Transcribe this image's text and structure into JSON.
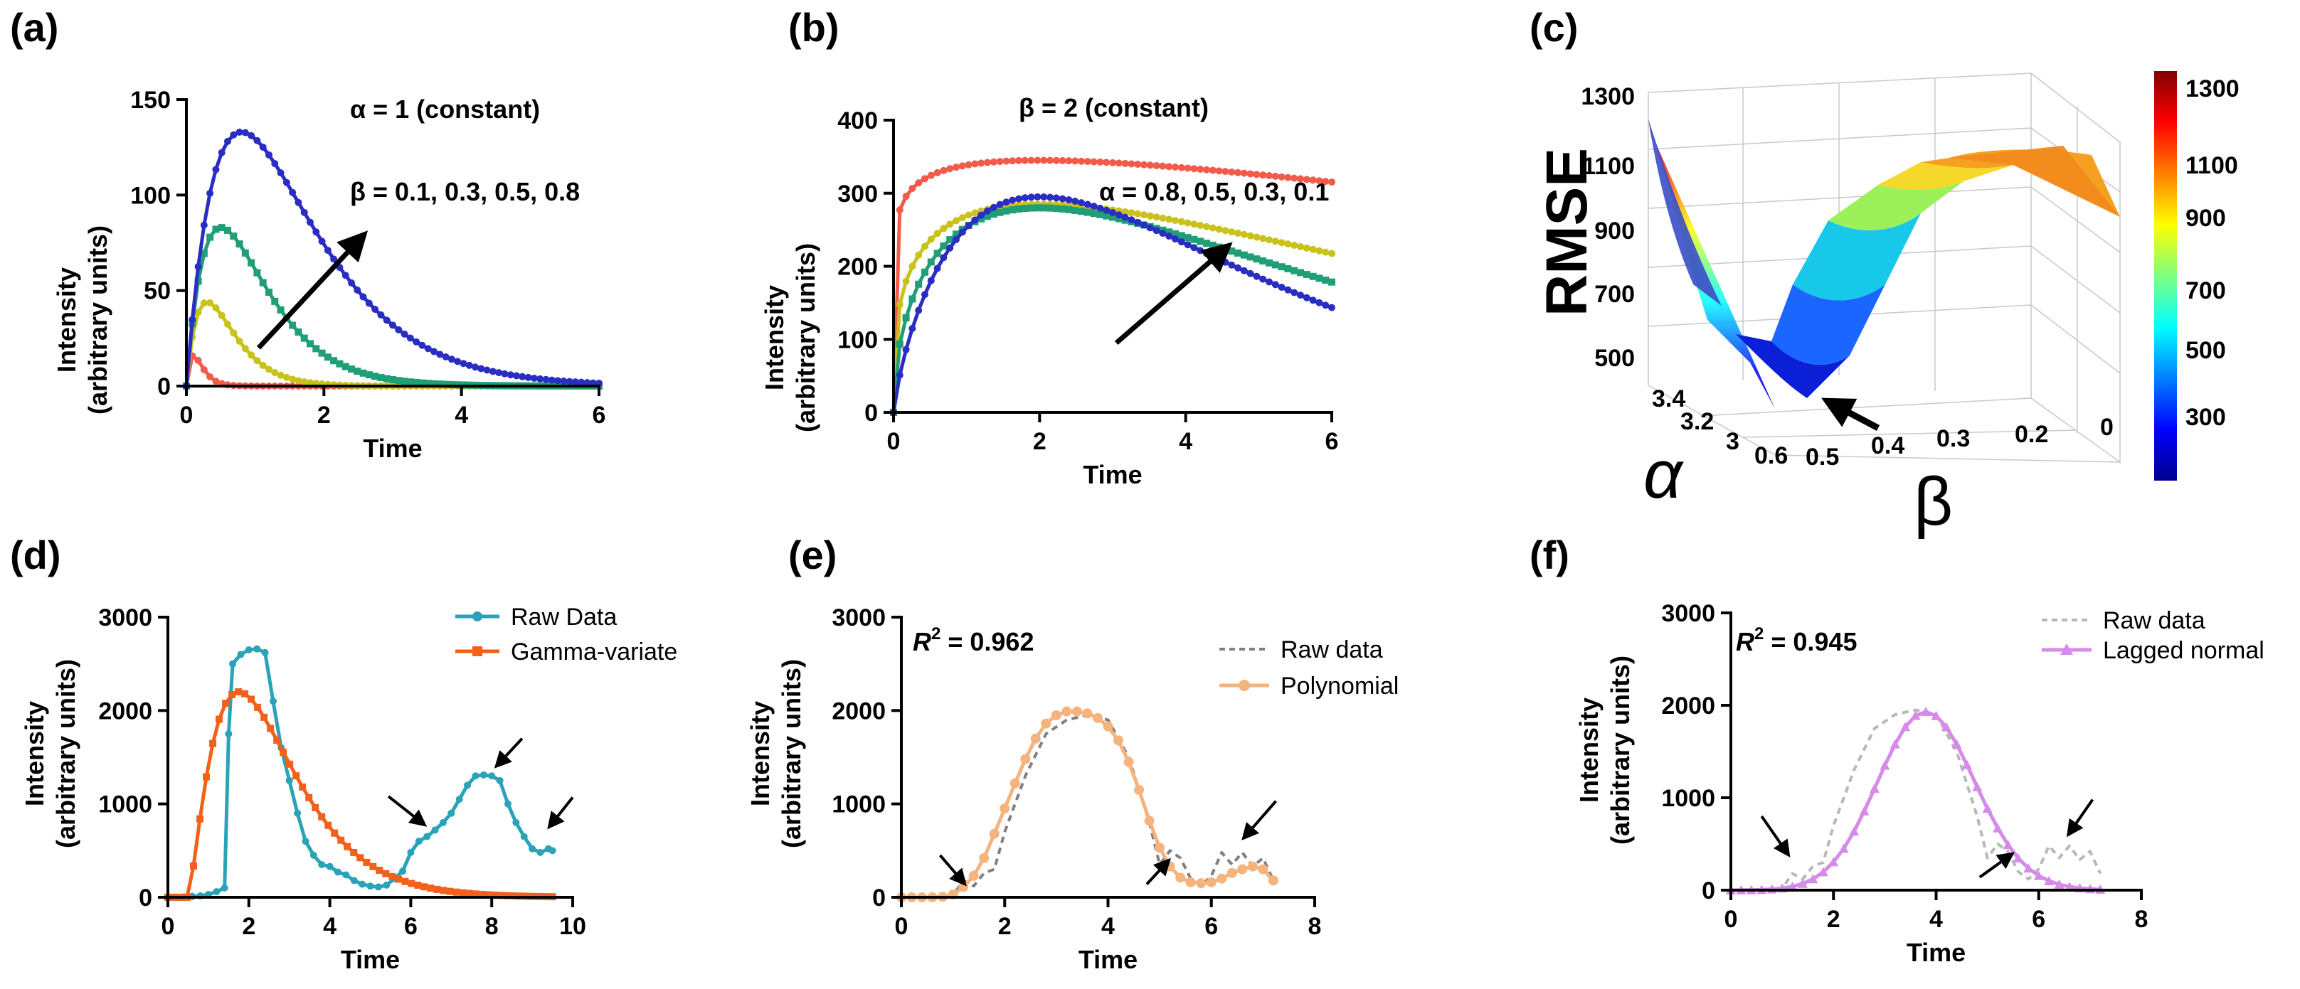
{
  "chart_data": [
    {
      "id": "a",
      "panel_label": "(a)",
      "type": "line",
      "xlabel": "Time",
      "ylabel_line1": "Intensity",
      "ylabel_line2": "(arbitrary units)",
      "xlim": [
        0,
        6
      ],
      "ylim": [
        0,
        150
      ],
      "xticks": [
        0,
        2,
        4,
        6
      ],
      "yticks": [
        0,
        50,
        100,
        150
      ],
      "annotations": [
        "α = 1 (constant)",
        "β = 0.1, 0.3, 0.5, 0.8"
      ],
      "arrow": {
        "from": [
          1.05,
          20
        ],
        "to": [
          2.55,
          78
        ]
      },
      "series": [
        {
          "name": "β=0.1",
          "color": "#f25a4a",
          "func": "gamma",
          "a": 1,
          "b": 0.1,
          "k": 16
        },
        {
          "name": "β=0.3",
          "color": "#c9c21b",
          "func": "gamma",
          "a": 1,
          "b": 0.3,
          "k": 44
        },
        {
          "name": "β=0.5",
          "color": "#1f9e78",
          "func": "gamma",
          "a": 1,
          "b": 0.5,
          "k": 83
        },
        {
          "name": "β=0.8",
          "color": "#2a2dc2",
          "func": "gamma",
          "a": 1,
          "b": 0.8,
          "k": 133
        }
      ]
    },
    {
      "id": "b",
      "panel_label": "(b)",
      "type": "line",
      "xlabel": "Time",
      "ylabel_line1": "Intensity",
      "ylabel_line2": "(arbitrary units)",
      "xlim": [
        0,
        6
      ],
      "ylim": [
        0,
        400
      ],
      "xticks": [
        0,
        2,
        4,
        6
      ],
      "yticks": [
        0,
        100,
        200,
        300,
        400
      ],
      "annotations": [
        "β = 2 (constant)",
        "α = 0.8, 0.5, 0.3, 0.1"
      ],
      "arrow": {
        "from": [
          3.05,
          95
        ],
        "to": [
          4.55,
          225
        ]
      },
      "series": [
        {
          "name": "α=0.1",
          "color": "#f25a4a",
          "func": "gamma",
          "a": 0.1,
          "b": 2,
          "k": 345
        },
        {
          "name": "α=0.3",
          "color": "#c9c21b",
          "func": "gamma",
          "a": 0.3,
          "b": 2,
          "k": 285
        },
        {
          "name": "α=0.5",
          "color": "#1f9e78",
          "func": "gamma",
          "a": 0.5,
          "b": 2,
          "k": 280
        },
        {
          "name": "α=0.8",
          "color": "#2a2dc2",
          "func": "gamma",
          "a": 0.8,
          "b": 2,
          "k": 295
        }
      ]
    },
    {
      "id": "c",
      "panel_label": "(c)",
      "type": "surface",
      "zlabel": "RMSE",
      "xlabel": "α",
      "ylabel": "β",
      "zticks": [
        "1300",
        "1100",
        "900",
        "700",
        "500"
      ],
      "alpha_ticks": [
        "3.4",
        "3.2",
        "3",
        "0.6"
      ],
      "beta_ticks": [
        "0.5",
        "0.4",
        "0.3",
        "0.2",
        "0"
      ],
      "colorbar_ticks": [
        "1300",
        "1100",
        "900",
        "700",
        "500",
        "300"
      ],
      "colorbar_range": [
        250,
        1330
      ],
      "surface_min": 300,
      "surface_max": 1200
    },
    {
      "id": "d",
      "panel_label": "(d)",
      "type": "line",
      "xlabel": "Time",
      "ylabel_line1": "Intensity",
      "ylabel_line2": "(arbitrary units)",
      "xlim": [
        0,
        10
      ],
      "ylim": [
        0,
        3000
      ],
      "xticks": [
        0,
        2,
        4,
        6,
        8,
        10
      ],
      "yticks": [
        0,
        1000,
        2000,
        3000
      ],
      "legend": [
        "Raw Data",
        "Gamma-variate"
      ],
      "arrows": [
        [
          [
            5.45,
            1080
          ],
          [
            6.3,
            790
          ]
        ],
        [
          [
            8.75,
            1700
          ],
          [
            8.15,
            1420
          ]
        ],
        [
          [
            10.0,
            1070
          ],
          [
            9.45,
            770
          ]
        ]
      ],
      "series": [
        {
          "name": "Raw Data",
          "color": "#2aa3b8",
          "x": [
            0,
            0.2,
            0.4,
            0.6,
            0.8,
            1.0,
            1.2,
            1.4,
            1.5,
            1.6,
            1.8,
            2.0,
            2.2,
            2.4,
            2.6,
            2.8,
            3.0,
            3.2,
            3.4,
            3.6,
            3.8,
            4.0,
            4.2,
            4.4,
            4.6,
            4.8,
            5.0,
            5.2,
            5.4,
            5.6,
            5.8,
            6.0,
            6.2,
            6.4,
            6.6,
            6.8,
            7.0,
            7.2,
            7.4,
            7.6,
            7.8,
            8.0,
            8.2,
            8.4,
            8.6,
            8.8,
            9.0,
            9.2,
            9.4,
            9.5
          ],
          "y": [
            0,
            0,
            5,
            10,
            15,
            30,
            60,
            100,
            1750,
            2500,
            2600,
            2650,
            2660,
            2620,
            2100,
            1600,
            1250,
            900,
            600,
            450,
            350,
            330,
            270,
            240,
            180,
            140,
            120,
            110,
            130,
            200,
            280,
            480,
            600,
            650,
            720,
            800,
            900,
            1050,
            1200,
            1300,
            1310,
            1300,
            1250,
            1000,
            800,
            650,
            520,
            480,
            520,
            500
          ]
        },
        {
          "name": "Gamma-variate",
          "color": "#f2601a",
          "func": "gammashift",
          "t0": 0.5,
          "a": 1.4,
          "b": 1.25,
          "k": 2200
        }
      ]
    },
    {
      "id": "e",
      "panel_label": "(e)",
      "type": "line",
      "xlabel": "Time",
      "ylabel_line1": "Intensity",
      "ylabel_line2": "(arbitrary units)",
      "xlim": [
        0,
        8
      ],
      "ylim": [
        0,
        3000
      ],
      "xticks": [
        0,
        2,
        4,
        6,
        8
      ],
      "yticks": [
        0,
        1000,
        2000,
        3000
      ],
      "r2_label": "R",
      "r2_sup": "2",
      "r2_value": " = 0.962",
      "legend": [
        "Raw data",
        "Polynomial"
      ],
      "arrows": [
        [
          [
            0.75,
            450
          ],
          [
            1.2,
            160
          ]
        ],
        [
          [
            4.75,
            140
          ],
          [
            5.15,
            380
          ]
        ],
        [
          [
            7.25,
            1030
          ],
          [
            6.65,
            650
          ]
        ]
      ],
      "series": [
        {
          "name": "Raw data",
          "color": "#808080",
          "dashed": true,
          "x": [
            0,
            0.6,
            1.0,
            1.2,
            1.4,
            1.6,
            1.8,
            2.0,
            2.4,
            2.8,
            3.2,
            3.6,
            4.0,
            4.4,
            4.8,
            5.0,
            5.2,
            5.4,
            5.6,
            5.8,
            6.0,
            6.2,
            6.4,
            6.6,
            6.8,
            7.0,
            7.2
          ],
          "y": [
            0,
            0,
            20,
            180,
            120,
            260,
            300,
            700,
            1300,
            1750,
            1900,
            1950,
            1900,
            1500,
            800,
            350,
            500,
            420,
            200,
            120,
            230,
            480,
            350,
            480,
            330,
            420,
            180
          ]
        },
        {
          "name": "Polynomial",
          "color": "#f5b37d",
          "x": [
            0,
            0.2,
            0.4,
            0.6,
            0.8,
            1.0,
            1.2,
            1.4,
            1.6,
            1.8,
            2.0,
            2.2,
            2.4,
            2.6,
            2.8,
            3.0,
            3.2,
            3.4,
            3.6,
            3.8,
            4.0,
            4.2,
            4.4,
            4.6,
            4.8,
            5.0,
            5.2,
            5.4,
            5.6,
            5.8,
            6.0,
            6.2,
            6.4,
            6.6,
            6.8,
            7.0,
            7.2
          ],
          "y": [
            0,
            0,
            0,
            0,
            5,
            30,
            110,
            230,
            420,
            680,
            950,
            1220,
            1480,
            1700,
            1860,
            1950,
            1990,
            1990,
            1970,
            1920,
            1830,
            1680,
            1450,
            1150,
            820,
            530,
            330,
            210,
            160,
            150,
            160,
            200,
            260,
            300,
            330,
            300,
            180
          ]
        }
      ]
    },
    {
      "id": "f",
      "panel_label": "(f)",
      "type": "line",
      "xlabel": "Time",
      "ylabel_line1": "Intensity",
      "ylabel_line2": "(arbitrary units)",
      "xlim": [
        0,
        8
      ],
      "ylim": [
        0,
        3000
      ],
      "xticks": [
        0,
        2,
        4,
        6,
        8
      ],
      "yticks": [
        0,
        1000,
        2000,
        3000
      ],
      "r2_label": "R",
      "r2_sup": "2",
      "r2_value": " = 0.945",
      "legend": [
        "Raw data",
        "Lagged normal"
      ],
      "arrows": [
        [
          [
            0.6,
            800
          ],
          [
            1.1,
            400
          ]
        ],
        [
          [
            4.85,
            140
          ],
          [
            5.45,
            380
          ]
        ],
        [
          [
            7.05,
            980
          ],
          [
            6.6,
            620
          ]
        ]
      ],
      "series": [
        {
          "name": "Raw data",
          "color": "#b8b8b8",
          "dashed": true,
          "x": [
            0,
            0.6,
            1.0,
            1.2,
            1.4,
            1.6,
            1.8,
            2.0,
            2.4,
            2.8,
            3.2,
            3.6,
            4.0,
            4.4,
            4.8,
            5.0,
            5.2,
            5.4,
            5.6,
            5.8,
            6.0,
            6.2,
            6.4,
            6.6,
            6.8,
            7.0,
            7.2
          ],
          "y": [
            0,
            0,
            20,
            180,
            120,
            260,
            300,
            700,
            1300,
            1750,
            1900,
            1950,
            1900,
            1500,
            800,
            350,
            500,
            420,
            200,
            120,
            230,
            480,
            350,
            480,
            330,
            420,
            180
          ]
        },
        {
          "name": "Lagged normal",
          "color": "#d68be8",
          "func": "lagged",
          "mu": 3.5,
          "sigma": 0.9,
          "tau": 0.35,
          "k": 1930
        }
      ]
    }
  ]
}
